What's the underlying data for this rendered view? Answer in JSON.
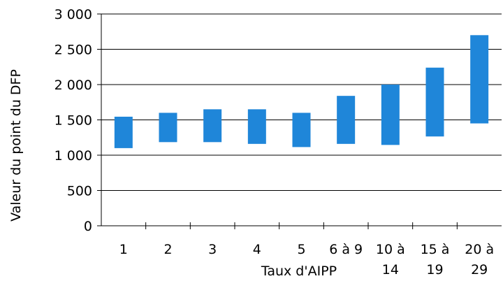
{
  "chart_data": {
    "type": "bar",
    "subtype": "floating-range",
    "title": "",
    "xlabel": "Taux d'AIPP",
    "ylabel": "Valeur du point du DFP",
    "ylim": [
      0,
      3000
    ],
    "yticks": [
      0,
      500,
      1000,
      1500,
      2000,
      2500,
      3000
    ],
    "ytick_labels": [
      "0",
      "500",
      "1 000",
      "1 500",
      "2 000",
      "2 500",
      "3 000"
    ],
    "grid": "horizontal",
    "bar_color": "#1f86d9",
    "categories": [
      [
        "1"
      ],
      [
        "2"
      ],
      [
        "3"
      ],
      [
        "4"
      ],
      [
        "5"
      ],
      [
        "6 à 9"
      ],
      [
        "10 à",
        "14"
      ],
      [
        "15 à",
        "19"
      ],
      [
        "20 à",
        "29"
      ]
    ],
    "ranges": [
      {
        "low": 1100,
        "high": 1545
      },
      {
        "low": 1185,
        "high": 1600
      },
      {
        "low": 1185,
        "high": 1650
      },
      {
        "low": 1160,
        "high": 1650
      },
      {
        "low": 1115,
        "high": 1600
      },
      {
        "low": 1160,
        "high": 1840
      },
      {
        "low": 1145,
        "high": 2000
      },
      {
        "low": 1265,
        "high": 2240
      },
      {
        "low": 1450,
        "high": 2700
      }
    ]
  }
}
